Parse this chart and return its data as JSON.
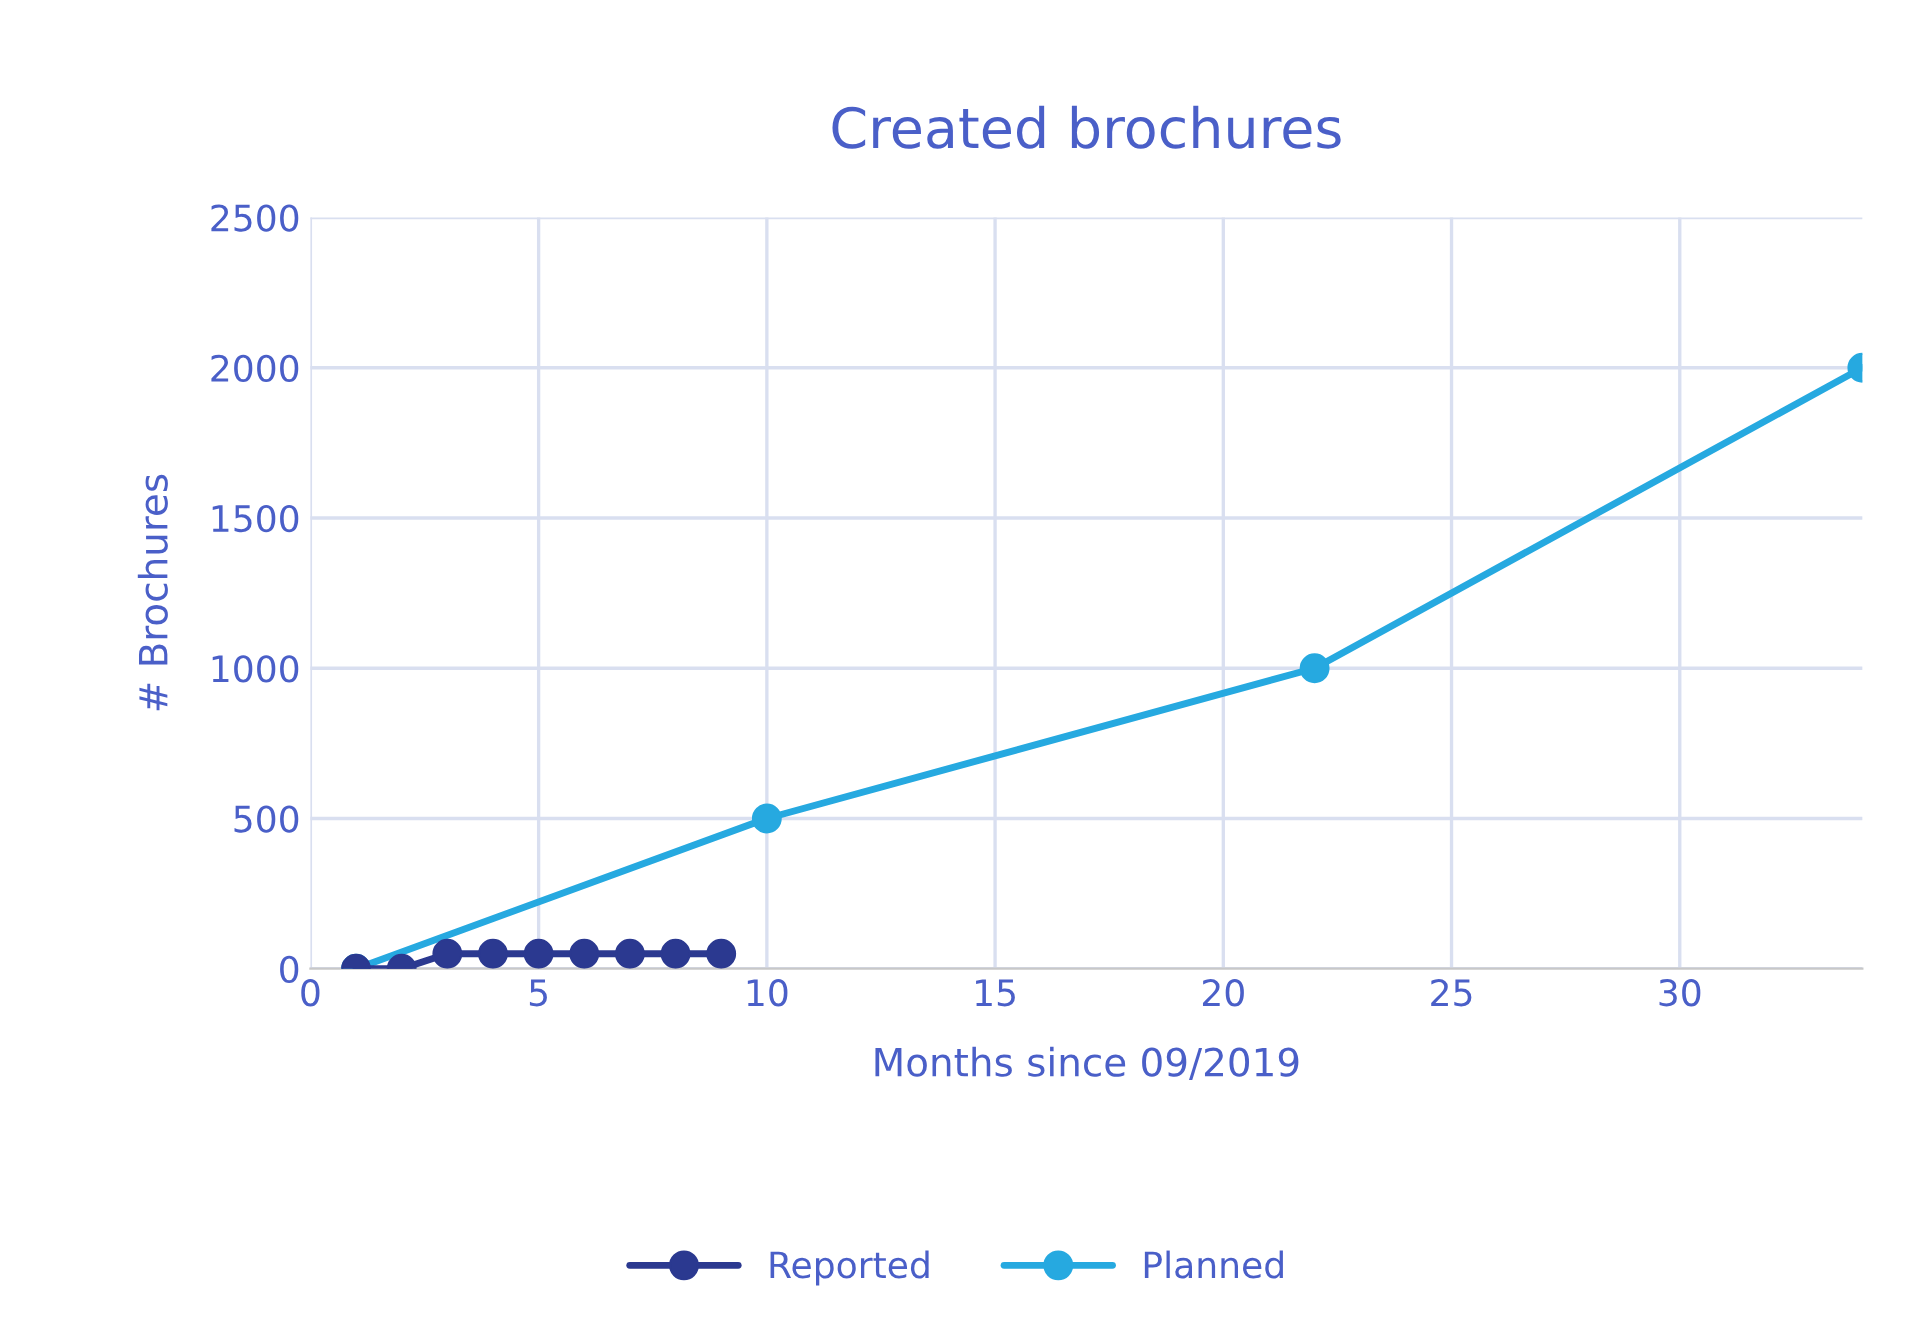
{
  "chart_data": {
    "type": "line",
    "title": "Created brochures",
    "xlabel": "Months since 09/2019",
    "ylabel": "# Brochures",
    "xlim": [
      0,
      34
    ],
    "xticks": [
      0,
      5,
      10,
      15,
      20,
      25,
      30
    ],
    "ylim": [
      0,
      2500
    ],
    "yticks": [
      0,
      500,
      1000,
      1500,
      2000,
      2500
    ],
    "grid": true,
    "legend": "bottom",
    "marker": "circle",
    "line_style": "solid",
    "series": [
      {
        "name": "Reported",
        "color": "#2b3990",
        "x": [
          1,
          2,
          3,
          4,
          5,
          6,
          7,
          8,
          9
        ],
        "values": [
          0,
          0,
          50,
          50,
          50,
          50,
          50,
          50,
          50
        ]
      },
      {
        "name": "Planned",
        "color": "#26a9e0",
        "x": [
          1,
          10,
          22,
          34
        ],
        "values": [
          0,
          500,
          1000,
          2000
        ]
      }
    ]
  }
}
